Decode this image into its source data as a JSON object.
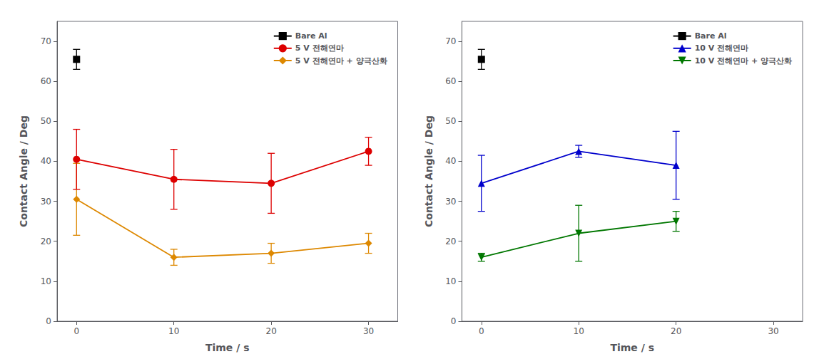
{
  "chart_data": [
    {
      "type": "line",
      "xlabel": "Time / s",
      "ylabel": "Contact Angle / Deg",
      "xlim": [
        -2,
        33
      ],
      "ylim": [
        0,
        75
      ],
      "xticks": [
        0,
        10,
        20,
        30
      ],
      "yticks": [
        0,
        10,
        20,
        30,
        40,
        50,
        60,
        70
      ],
      "grid": false,
      "legend": "upper right",
      "series": [
        {
          "name": "Bare Al",
          "color": "#000000",
          "marker": "square",
          "line_style": "solid",
          "x": [
            0
          ],
          "values": [
            65.5
          ],
          "yerr": [
            2.5
          ]
        },
        {
          "name": "5 V 전해연마",
          "color": "#dd0000",
          "marker": "circle",
          "line_style": "solid",
          "x": [
            0,
            10,
            20,
            30
          ],
          "values": [
            40.5,
            35.5,
            34.5,
            42.5
          ],
          "yerr": [
            7.5,
            7.5,
            7.5,
            3.5
          ]
        },
        {
          "name": "5 V 전해연마 + 양극산화",
          "color": "#dd8800",
          "marker": "diamond",
          "line_style": "solid",
          "x": [
            0,
            10,
            20,
            30
          ],
          "values": [
            30.5,
            16.0,
            17.0,
            19.5
          ],
          "yerr": [
            9.0,
            2.0,
            2.5,
            2.5
          ]
        }
      ]
    },
    {
      "type": "line",
      "xlabel": "Time / s",
      "ylabel": "Contact Angle / Deg",
      "xlim": [
        -2,
        33
      ],
      "ylim": [
        0,
        75
      ],
      "xticks": [
        0,
        10,
        20,
        30
      ],
      "yticks": [
        0,
        10,
        20,
        30,
        40,
        50,
        60,
        70
      ],
      "grid": false,
      "legend": "upper right",
      "series": [
        {
          "name": "Bare Al",
          "color": "#000000",
          "marker": "square",
          "line_style": "solid",
          "x": [
            0
          ],
          "values": [
            65.5
          ],
          "yerr": [
            2.5
          ]
        },
        {
          "name": "10 V 전해연마",
          "color": "#0000cc",
          "marker": "triangle",
          "line_style": "solid",
          "x": [
            0,
            10,
            20
          ],
          "values": [
            34.5,
            42.5,
            39.0
          ],
          "yerr": [
            7.0,
            1.5,
            8.5
          ]
        },
        {
          "name": "10 V 전해연마 + 양극산화",
          "color": "#007700",
          "marker": "triangle_down",
          "line_style": "solid",
          "x": [
            0,
            10,
            20
          ],
          "values": [
            16.0,
            22.0,
            25.0
          ],
          "yerr": [
            1.0,
            7.0,
            2.5
          ]
        }
      ]
    }
  ]
}
